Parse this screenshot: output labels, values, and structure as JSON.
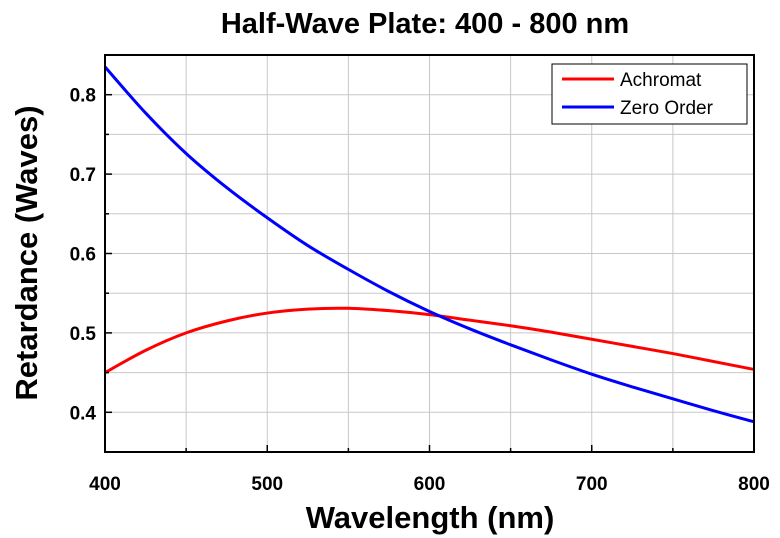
{
  "chart_data": {
    "type": "line",
    "title": "Half-Wave Plate: 400 - 800 nm",
    "xlabel": "Wavelength (nm)",
    "ylabel": "Retardance (Waves)",
    "xlim": [
      400,
      800
    ],
    "ylim": [
      0.35,
      0.85
    ],
    "xticks": [
      400,
      500,
      600,
      700,
      800
    ],
    "yticks": [
      0.4,
      0.5,
      0.6,
      0.7,
      0.8
    ],
    "grid": true,
    "legend_position": "top-right",
    "x": [
      400,
      425,
      450,
      475,
      500,
      525,
      550,
      575,
      600,
      625,
      650,
      675,
      700,
      725,
      750,
      775,
      800
    ],
    "series": [
      {
        "name": "Achromat",
        "color": "#ff0000",
        "values": [
          0.45,
          0.478,
          0.5,
          0.515,
          0.525,
          0.53,
          0.531,
          0.528,
          0.523,
          0.516,
          0.509,
          0.501,
          0.492,
          0.483,
          0.474,
          0.464,
          0.454
        ]
      },
      {
        "name": "Zero Order",
        "color": "#0000ff",
        "values": [
          0.835,
          0.777,
          0.726,
          0.683,
          0.645,
          0.61,
          0.58,
          0.552,
          0.527,
          0.505,
          0.485,
          0.466,
          0.448,
          0.432,
          0.417,
          0.402,
          0.388
        ]
      }
    ]
  }
}
